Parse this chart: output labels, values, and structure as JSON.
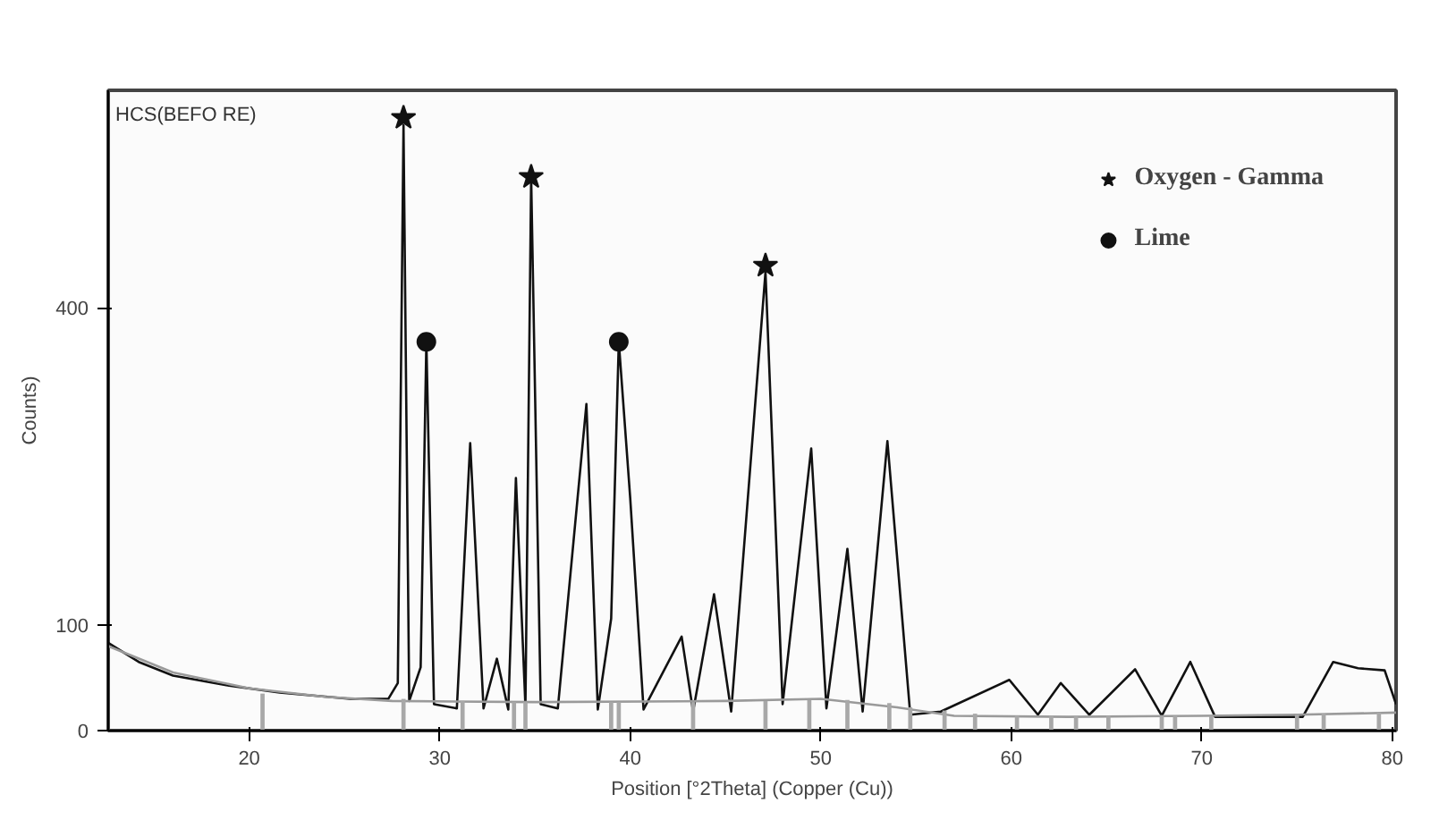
{
  "chart_data": {
    "type": "line",
    "xlabel": "Position [°2Theta] (Copper (Cu))",
    "ylabel": "Counts)",
    "annotations": [
      "HCS(BEFO RE)"
    ],
    "xlim": [
      12.6,
      80.2
    ],
    "xticks": [
      20,
      30,
      40,
      50,
      60,
      70,
      80
    ],
    "ylim": [
      0,
      606
    ],
    "yticks": [
      0,
      100,
      400
    ],
    "grid": false,
    "legend": "top right",
    "series": [
      {
        "color": "#111111",
        "x": [
          12.6,
          14.2,
          16.0,
          18.8,
          21.6,
          25.3,
          27.3,
          27.8,
          28.1,
          28.4,
          29.0,
          29.3,
          29.7,
          30.9,
          31.6,
          32.3,
          33.0,
          33.6,
          34.0,
          34.5,
          34.8,
          35.3,
          36.2,
          37.7,
          38.3,
          39.0,
          39.4,
          40.0,
          40.7,
          42.7,
          43.3,
          44.4,
          45.3,
          47.1,
          48.0,
          49.5,
          50.3,
          51.4,
          52.2,
          53.5,
          54.0,
          54.7,
          56.3,
          59.9,
          61.4,
          62.6,
          64.1,
          66.5,
          67.9,
          69.4,
          70.7,
          75.3,
          76.9,
          78.2,
          79.6,
          80.2
        ],
        "values": [
          83,
          65,
          52,
          43,
          36,
          30,
          30,
          45,
          573,
          28,
          60,
          368,
          25,
          21,
          272,
          21,
          68,
          20,
          239,
          23,
          524,
          25,
          21,
          309,
          20,
          106,
          368,
          220,
          20,
          89,
          18,
          129,
          18,
          434,
          25,
          267,
          21,
          172,
          18,
          274,
          166,
          15,
          18,
          48,
          15,
          45,
          15,
          58,
          14,
          65,
          13,
          13,
          65,
          59,
          57,
          25
        ]
      },
      {
        "type": "line",
        "color": "#9a9a9a",
        "x": [
          12.6,
          16.0,
          20.0,
          24.0,
          27.5,
          35.0,
          45.0,
          50.0,
          54.0,
          57.0,
          63.0,
          70.0,
          75.0,
          80.2
        ],
        "values": [
          80,
          55,
          40,
          32,
          28,
          27,
          28,
          30,
          22,
          14,
          13,
          14,
          15,
          17
        ]
      },
      {
        "type": "bar",
        "color": "#a8a8a8",
        "x": [
          20.7,
          28.1,
          31.2,
          33.9,
          34.5,
          39.0,
          39.4,
          43.3,
          47.1,
          49.4,
          51.4,
          53.6,
          54.7,
          56.5,
          58.1,
          60.3,
          62.1,
          63.4,
          65.1,
          67.9,
          68.6,
          70.5,
          75.0,
          76.4,
          79.3
        ],
        "values": [
          35,
          30,
          28,
          27,
          27,
          27,
          27,
          27,
          28,
          29,
          29,
          26,
          22,
          19,
          16,
          14,
          14,
          14,
          14,
          14,
          14,
          14,
          15,
          16,
          17
        ]
      },
      {
        "type": "scatter",
        "name": "Oxygen - Gamma",
        "marker": "star",
        "color": "#111111",
        "x": [
          28.1,
          34.8,
          47.1
        ],
        "values": [
          580,
          524,
          440
        ]
      },
      {
        "type": "scatter",
        "name": "Lime",
        "marker": "circle",
        "color": "#111111",
        "x": [
          29.3,
          39.4
        ],
        "values": [
          368,
          368
        ]
      }
    ]
  }
}
